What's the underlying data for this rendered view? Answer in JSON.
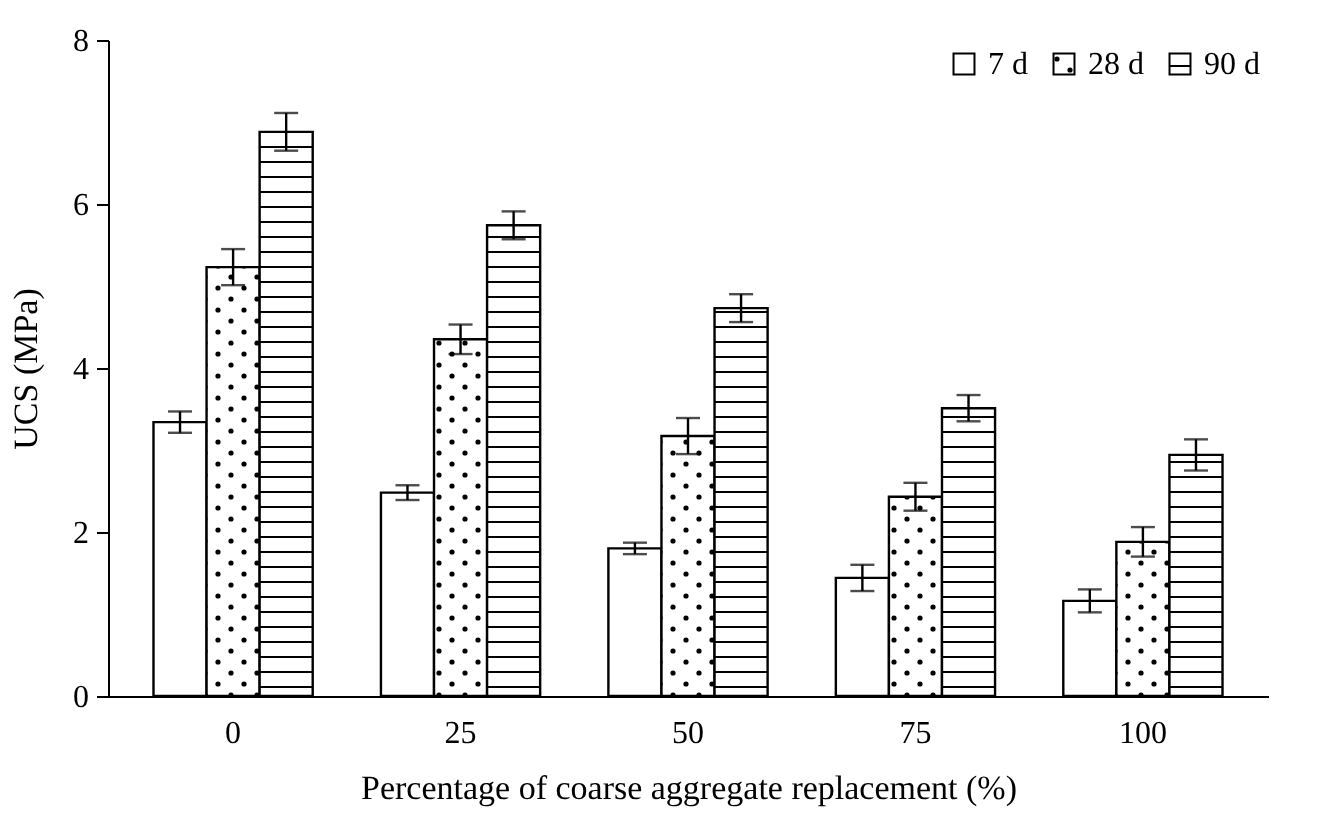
{
  "chart_data": {
    "type": "bar",
    "xlabel": "Percentage of coarse aggregate replacement (%)",
    "ylabel": "UCS (MPa)",
    "categories": [
      "0",
      "25",
      "50",
      "75",
      "100"
    ],
    "series": [
      {
        "name": "7 d",
        "color": "#000000",
        "values": [
          3.34,
          2.48,
          1.8,
          1.44,
          1.16
        ],
        "errors": [
          0.13,
          0.09,
          0.07,
          0.16,
          0.14
        ]
      },
      {
        "name": "28 d",
        "color": "#000000",
        "values": [
          5.23,
          4.35,
          3.17,
          2.43,
          1.88
        ],
        "errors": [
          0.22,
          0.18,
          0.22,
          0.17,
          0.18
        ]
      },
      {
        "name": "90 d",
        "color": "#000000",
        "values": [
          6.88,
          5.74,
          4.73,
          3.51,
          2.94
        ],
        "errors": [
          0.23,
          0.17,
          0.17,
          0.16,
          0.19
        ]
      }
    ],
    "ylim": [
      0,
      8
    ],
    "yticks": [
      0,
      2,
      4,
      6,
      8
    ],
    "grid": false,
    "legend": "top right"
  }
}
